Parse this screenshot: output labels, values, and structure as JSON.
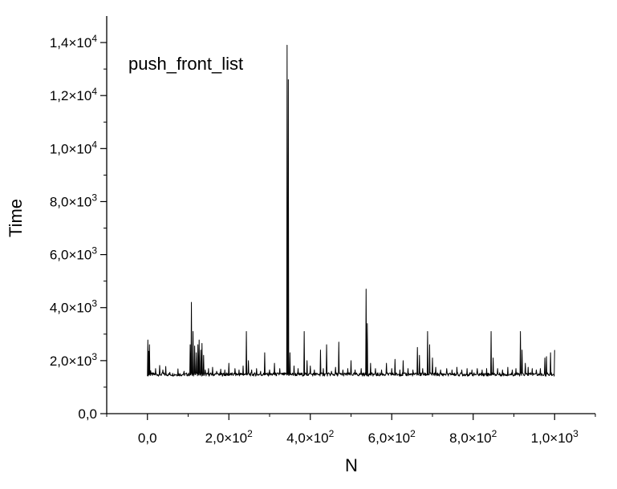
{
  "chart_data": {
    "type": "line",
    "legend": "push_front_list",
    "xlabel": "N",
    "ylabel": "Time",
    "xlim": [
      -100,
      1100
    ],
    "ylim": [
      0,
      15000
    ],
    "x_ticks": [
      {
        "value": 0,
        "mantissa": "0,0",
        "exp": ""
      },
      {
        "value": 200,
        "mantissa": "2,0×10",
        "exp": "2"
      },
      {
        "value": 400,
        "mantissa": "4,0×10",
        "exp": "2"
      },
      {
        "value": 600,
        "mantissa": "6,0×10",
        "exp": "2"
      },
      {
        "value": 800,
        "mantissa": "8,0×10",
        "exp": "2"
      },
      {
        "value": 1000,
        "mantissa": "1,0×10",
        "exp": "3"
      }
    ],
    "y_ticks": [
      {
        "value": 0,
        "mantissa": "0,0",
        "exp": ""
      },
      {
        "value": 2000,
        "mantissa": "2,0×10",
        "exp": "3"
      },
      {
        "value": 4000,
        "mantissa": "4,0×10",
        "exp": "3"
      },
      {
        "value": 6000,
        "mantissa": "6,0×10",
        "exp": "3"
      },
      {
        "value": 8000,
        "mantissa": "8,0×10",
        "exp": "3"
      },
      {
        "value": 10000,
        "mantissa": "1,0×10",
        "exp": "4"
      },
      {
        "value": 12000,
        "mantissa": "1,2×10",
        "exp": "4"
      },
      {
        "value": 14000,
        "mantissa": "1,4×10",
        "exp": "4"
      }
    ],
    "series": [
      {
        "baseline": 1480,
        "color": "#000000",
        "peaks": [
          [
            1,
            2780
          ],
          [
            3,
            2350
          ],
          [
            5,
            2600
          ],
          [
            8,
            1620
          ],
          [
            20,
            1700
          ],
          [
            30,
            1820
          ],
          [
            38,
            1650
          ],
          [
            45,
            1780
          ],
          [
            55,
            1560
          ],
          [
            75,
            1690
          ],
          [
            90,
            1600
          ],
          [
            105,
            2600
          ],
          [
            108,
            4200
          ],
          [
            112,
            3100
          ],
          [
            116,
            2550
          ],
          [
            120,
            2300
          ],
          [
            124,
            2600
          ],
          [
            127,
            2780
          ],
          [
            131,
            2400
          ],
          [
            134,
            2650
          ],
          [
            138,
            2200
          ],
          [
            142,
            1650
          ],
          [
            150,
            1700
          ],
          [
            160,
            1750
          ],
          [
            170,
            1600
          ],
          [
            180,
            1680
          ],
          [
            190,
            1650
          ],
          [
            200,
            1900
          ],
          [
            215,
            1700
          ],
          [
            225,
            1650
          ],
          [
            235,
            1800
          ],
          [
            243,
            3100
          ],
          [
            248,
            2000
          ],
          [
            256,
            1650
          ],
          [
            268,
            1700
          ],
          [
            278,
            1600
          ],
          [
            288,
            2300
          ],
          [
            300,
            1650
          ],
          [
            312,
            1900
          ],
          [
            325,
            1700
          ],
          [
            343,
            13900
          ],
          [
            346,
            12600
          ],
          [
            350,
            2300
          ],
          [
            360,
            1800
          ],
          [
            370,
            1700
          ],
          [
            385,
            3100
          ],
          [
            392,
            2000
          ],
          [
            400,
            1800
          ],
          [
            410,
            1650
          ],
          [
            425,
            2400
          ],
          [
            432,
            1700
          ],
          [
            440,
            2600
          ],
          [
            452,
            1600
          ],
          [
            462,
            1750
          ],
          [
            470,
            2700
          ],
          [
            480,
            1650
          ],
          [
            492,
            1700
          ],
          [
            500,
            2000
          ],
          [
            510,
            1650
          ],
          [
            525,
            1700
          ],
          [
            537,
            4700
          ],
          [
            540,
            3400
          ],
          [
            548,
            1900
          ],
          [
            560,
            1700
          ],
          [
            575,
            1650
          ],
          [
            587,
            1900
          ],
          [
            600,
            1700
          ],
          [
            608,
            2050
          ],
          [
            620,
            1650
          ],
          [
            628,
            2000
          ],
          [
            640,
            1700
          ],
          [
            652,
            1650
          ],
          [
            663,
            2500
          ],
          [
            668,
            2200
          ],
          [
            676,
            1700
          ],
          [
            688,
            3100
          ],
          [
            693,
            2600
          ],
          [
            700,
            2100
          ],
          [
            708,
            1750
          ],
          [
            720,
            1650
          ],
          [
            735,
            1700
          ],
          [
            748,
            1650
          ],
          [
            760,
            1750
          ],
          [
            772,
            1650
          ],
          [
            785,
            1700
          ],
          [
            797,
            1650
          ],
          [
            810,
            1700
          ],
          [
            822,
            1650
          ],
          [
            833,
            1700
          ],
          [
            844,
            3100
          ],
          [
            849,
            2100
          ],
          [
            860,
            1700
          ],
          [
            872,
            1650
          ],
          [
            885,
            1750
          ],
          [
            896,
            1650
          ],
          [
            905,
            1700
          ],
          [
            916,
            3100
          ],
          [
            920,
            2400
          ],
          [
            928,
            1900
          ],
          [
            935,
            1750
          ],
          [
            945,
            1700
          ],
          [
            955,
            1650
          ],
          [
            965,
            1700
          ],
          [
            976,
            2100
          ],
          [
            980,
            2150
          ],
          [
            990,
            2300
          ],
          [
            1000,
            2400
          ]
        ]
      }
    ]
  }
}
